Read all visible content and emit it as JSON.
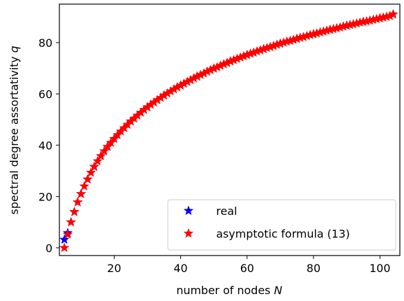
{
  "chart_data": {
    "type": "scatter",
    "title": "",
    "xlabel": "number of nodes",
    "xlabel_symbol": "N",
    "ylabel": "spectral degree assortativity",
    "ylabel_symbol": "q",
    "xlim": [
      3.5,
      106
    ],
    "ylim": [
      -3,
      95
    ],
    "xticks": [
      20,
      40,
      60,
      80,
      100
    ],
    "yticks": [
      0,
      20,
      40,
      60,
      80
    ],
    "grid": false,
    "legend_position": "lower-right",
    "series": [
      {
        "name": "real",
        "marker": "star",
        "color": "#0000ff",
        "x": [
          5,
          6,
          7,
          8,
          9,
          10,
          12,
          14,
          16,
          18,
          20,
          25,
          30,
          35,
          40,
          45,
          50,
          55,
          60,
          65,
          70,
          75,
          80,
          85,
          90,
          95,
          100,
          104
        ],
        "y": [
          3.2,
          5.8,
          10.0,
          14.0,
          17.8,
          21.0,
          26.7,
          31.6,
          35.8,
          39.4,
          42.5,
          49.3,
          54.8,
          59.4,
          63.3,
          66.8,
          69.9,
          72.7,
          75.2,
          77.5,
          79.6,
          81.5,
          83.3,
          85.0,
          86.6,
          88.1,
          89.5,
          91.0
        ]
      },
      {
        "name": "asymptotic formula (13)",
        "marker": "star",
        "color": "#ff0000",
        "x": [
          5,
          6,
          7,
          8,
          9,
          10,
          11,
          12,
          13,
          14,
          15,
          16,
          17,
          18,
          19,
          20,
          21,
          22,
          23,
          24,
          25,
          26,
          27,
          28,
          29,
          30,
          31,
          32,
          33,
          34,
          35,
          36,
          37,
          38,
          39,
          40,
          41,
          42,
          43,
          44,
          45,
          46,
          47,
          48,
          49,
          50,
          51,
          52,
          53,
          54,
          55,
          56,
          57,
          58,
          59,
          60,
          61,
          62,
          63,
          64,
          65,
          66,
          67,
          68,
          69,
          70,
          71,
          72,
          73,
          74,
          75,
          76,
          77,
          78,
          79,
          80,
          81,
          82,
          83,
          84,
          85,
          86,
          87,
          88,
          89,
          90,
          91,
          92,
          93,
          94,
          95,
          96,
          97,
          98,
          99,
          100,
          101,
          102,
          103,
          104
        ],
        "y": [
          0.0,
          5.2,
          10.0,
          14.0,
          17.8,
          21.0,
          24.0,
          26.7,
          29.3,
          31.6,
          33.8,
          35.8,
          37.7,
          39.4,
          41.0,
          42.5,
          44.0,
          45.4,
          46.7,
          48.0,
          49.3,
          50.4,
          51.6,
          52.7,
          53.8,
          54.8,
          55.8,
          56.7,
          57.6,
          58.5,
          59.4,
          60.2,
          61.0,
          61.8,
          62.6,
          63.3,
          64.0,
          64.7,
          65.4,
          66.1,
          66.8,
          67.4,
          68.0,
          68.7,
          69.3,
          69.9,
          70.4,
          71.0,
          71.6,
          72.1,
          72.7,
          73.2,
          73.7,
          74.2,
          74.7,
          75.2,
          75.7,
          76.1,
          76.6,
          77.0,
          77.5,
          77.9,
          78.3,
          78.7,
          79.2,
          79.6,
          80.0,
          80.4,
          80.7,
          81.1,
          81.5,
          81.9,
          82.2,
          82.6,
          83.0,
          83.3,
          83.6,
          84.0,
          84.3,
          84.7,
          85.0,
          85.3,
          85.6,
          85.9,
          86.3,
          86.6,
          86.9,
          87.2,
          87.5,
          87.8,
          88.1,
          88.3,
          88.6,
          88.9,
          89.2,
          89.5,
          89.8,
          90.1,
          90.4,
          91.0
        ]
      }
    ]
  }
}
